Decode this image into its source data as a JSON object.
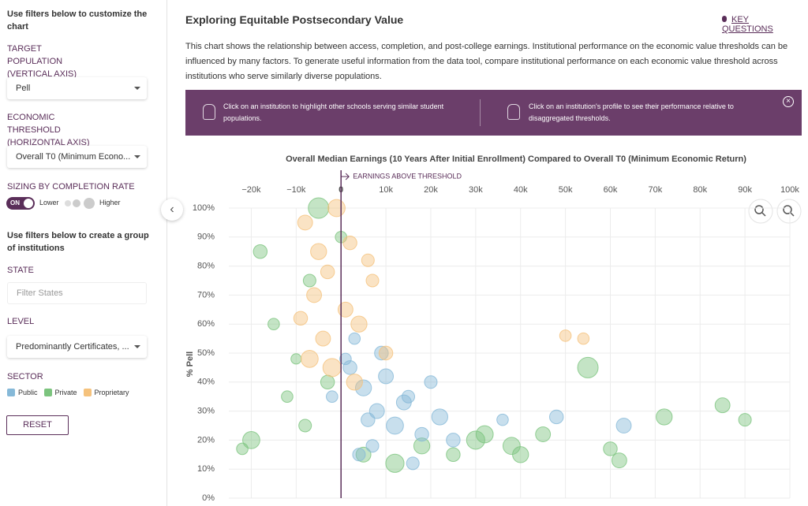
{
  "sidebar": {
    "heading_customize": "Use filters below to customize the chart",
    "target_population": {
      "label": "TARGET POPULATION (VERTICAL AXIS)",
      "value": "Pell"
    },
    "economic_threshold": {
      "label": "ECONOMIC THRESHOLD (HORIZONTAL AXIS)",
      "value": "Overall T0 (Minimum Econo..."
    },
    "sizing": {
      "label": "SIZING BY COMPLETION RATE",
      "toggle": "ON",
      "lower": "Lower",
      "higher": "Higher"
    },
    "heading_group": "Use filters below to create a group of institutions",
    "state": {
      "label": "STATE",
      "placeholder": "Filter States"
    },
    "level": {
      "label": "LEVEL",
      "value": "Predominantly Certificates, ..."
    },
    "sector": {
      "label": "SECTOR",
      "options": [
        "Public",
        "Private",
        "Proprietary"
      ]
    },
    "reset": "RESET"
  },
  "header": {
    "title": "Exploring Equitable Postsecondary Value",
    "key_questions": "KEY QUESTIONS",
    "description": "This chart shows the relationship between access, completion, and post-college earnings. Institutional performance on the economic value thresholds can be influenced by many factors. To generate useful information from the data tool, compare institutional performance on each economic value threshold across institutions who serve similarly diverse populations.",
    "banner": [
      "Click on an institution to highlight other schools serving similar student populations.",
      "Click on an institution's profile to see their performance relative to disaggregated thresholds."
    ]
  },
  "chart_data": {
    "type": "scatter",
    "title": "Overall Median Earnings (10 Years After Initial Enrollment) Compared to Overall T0 (Minimum Economic Return)",
    "annotation": "EARNINGS ABOVE THRESHOLD",
    "threshold": 0,
    "y_label": "% Pell",
    "xlim": [
      -25000,
      100000
    ],
    "xticks": [
      {
        "value": -20000,
        "label": "−20k"
      },
      {
        "value": -10000,
        "label": "−10k"
      },
      0,
      {
        "value": 10000,
        "label": "10k"
      },
      {
        "value": 20000,
        "label": "20k"
      },
      {
        "value": 30000,
        "label": "30k"
      },
      {
        "value": 40000,
        "label": "40k"
      },
      {
        "value": 50000,
        "label": "50k"
      },
      {
        "value": 60000,
        "label": "60k"
      },
      {
        "value": 70000,
        "label": "70k"
      },
      {
        "value": 80000,
        "label": "80k"
      },
      {
        "value": 90000,
        "label": "90k"
      },
      {
        "value": 100000,
        "label": "100k"
      }
    ],
    "ylim": [
      0,
      100
    ],
    "yticks": [
      {
        "value": 0,
        "label": "0%"
      },
      {
        "value": 10,
        "label": "10%"
      },
      {
        "value": 20,
        "label": "20%"
      },
      {
        "value": 30,
        "label": "30%"
      },
      {
        "value": 40,
        "label": "40%"
      },
      {
        "value": 50,
        "label": "50%"
      },
      {
        "value": 60,
        "label": "60%"
      },
      {
        "value": 70,
        "label": "70%"
      },
      {
        "value": 80,
        "label": "80%"
      },
      {
        "value": 90,
        "label": "90%"
      },
      {
        "value": 100,
        "label": "100%"
      }
    ],
    "grid": true,
    "series": [
      {
        "name": "Private",
        "color": "#7cc47e",
        "x": [
          -18000,
          -15000,
          -10000,
          -5000,
          -20000,
          -8000,
          0,
          5000,
          12000,
          18000,
          25000,
          32000,
          40000,
          45000,
          55000,
          60000,
          72000,
          85000,
          90000,
          -12000,
          -3000,
          30000,
          38000,
          -22000,
          -7000,
          62000
        ],
        "values": [
          85,
          60,
          48,
          100,
          20,
          25,
          90,
          15,
          12,
          18,
          15,
          22,
          15,
          22,
          45,
          17,
          28,
          32,
          27,
          35,
          40,
          20,
          18,
          17,
          75,
          13
        ],
        "sizes": [
          40,
          30,
          25,
          70,
          55,
          35,
          30,
          45,
          60,
          50,
          40,
          55,
          50,
          45,
          70,
          40,
          50,
          45,
          35,
          30,
          40,
          60,
          55,
          30,
          35,
          45
        ]
      },
      {
        "name": "Public",
        "color": "#86b9d8",
        "x": [
          2000,
          5000,
          8000,
          12000,
          15000,
          18000,
          3000,
          10000,
          22000,
          25000,
          7000,
          14000,
          1000,
          6000,
          20000,
          36000,
          48000,
          63000,
          16000,
          9000,
          -2000,
          4000
        ],
        "values": [
          45,
          38,
          30,
          25,
          35,
          22,
          55,
          42,
          28,
          20,
          18,
          33,
          48,
          27,
          40,
          27,
          28,
          25,
          12,
          50,
          35,
          15
        ],
        "sizes": [
          40,
          50,
          45,
          55,
          35,
          40,
          30,
          45,
          50,
          40,
          35,
          45,
          30,
          40,
          35,
          30,
          40,
          45,
          35,
          40,
          30,
          35
        ]
      },
      {
        "name": "Proprietary",
        "color": "#f5c27c",
        "x": [
          -8000,
          -5000,
          -3000,
          -1000,
          -6000,
          2000,
          4000,
          -4000,
          7000,
          10000,
          -2000,
          1000,
          3000,
          50000,
          54000,
          -9000,
          6000,
          -7000
        ],
        "values": [
          95,
          85,
          78,
          100,
          70,
          88,
          60,
          55,
          75,
          50,
          45,
          65,
          40,
          56,
          55,
          62,
          82,
          48
        ],
        "sizes": [
          45,
          50,
          40,
          55,
          45,
          40,
          50,
          45,
          35,
          40,
          60,
          45,
          50,
          30,
          30,
          40,
          35,
          55
        ]
      }
    ]
  }
}
